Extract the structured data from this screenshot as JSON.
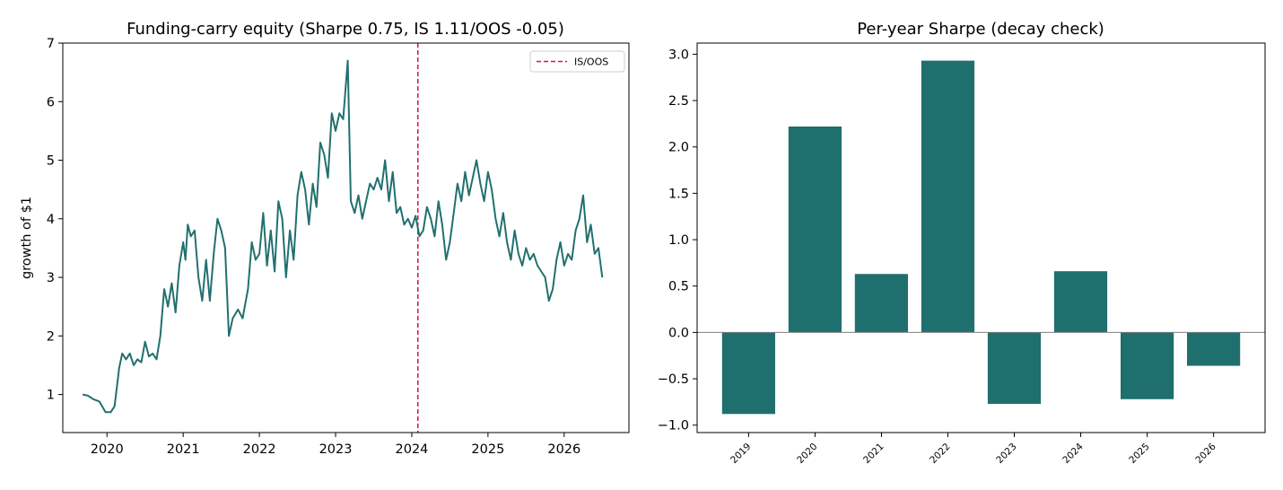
{
  "chart_data": [
    {
      "type": "line",
      "title": "Funding-carry equity (Sharpe 0.75, IS 1.11/OOS -0.05)",
      "xlabel": "",
      "ylabel": "growth of $1",
      "xlim": [
        2019.42,
        2026.85
      ],
      "ylim": [
        0.35,
        7.0
      ],
      "x_ticks": [
        "2020",
        "2021",
        "2022",
        "2023",
        "2024",
        "2025",
        "2026"
      ],
      "y_ticks": [
        "1",
        "2",
        "3",
        "4",
        "5",
        "6",
        "7"
      ],
      "color": "#21706f",
      "split": {
        "x": 2024.08,
        "label": "IS/OOS",
        "color": "#dc143c"
      },
      "legend": {
        "placement": "upper right",
        "entries": [
          "IS/OOS"
        ]
      },
      "series": [
        {
          "x": [
            2019.68,
            2019.75,
            2019.82,
            2019.9,
            2019.98,
            2020.05,
            2020.1,
            2020.16,
            2020.2,
            2020.25,
            2020.3,
            2020.35,
            2020.4,
            2020.45,
            2020.5,
            2020.55,
            2020.6,
            2020.65,
            2020.7,
            2020.75,
            2020.8,
            2020.85,
            2020.9,
            2020.95,
            2021.0,
            2021.03,
            2021.06,
            2021.1,
            2021.15,
            2021.2,
            2021.25,
            2021.3,
            2021.35,
            2021.4,
            2021.45,
            2021.5,
            2021.55,
            2021.6,
            2021.65,
            2021.72,
            2021.78,
            2021.85,
            2021.9,
            2021.95,
            2022.0,
            2022.05,
            2022.1,
            2022.15,
            2022.2,
            2022.25,
            2022.3,
            2022.35,
            2022.4,
            2022.45,
            2022.5,
            2022.55,
            2022.6,
            2022.65,
            2022.7,
            2022.75,
            2022.8,
            2022.85,
            2022.9,
            2022.95,
            2023.0,
            2023.05,
            2023.1,
            2023.16,
            2023.2,
            2023.25,
            2023.3,
            2023.35,
            2023.4,
            2023.45,
            2023.5,
            2023.55,
            2023.6,
            2023.65,
            2023.7,
            2023.75,
            2023.8,
            2023.85,
            2023.9,
            2023.95,
            2024.0,
            2024.05,
            2024.1,
            2024.15,
            2024.2,
            2024.25,
            2024.3,
            2024.35,
            2024.4,
            2024.45,
            2024.5,
            2024.55,
            2024.6,
            2024.65,
            2024.7,
            2024.75,
            2024.8,
            2024.85,
            2024.9,
            2024.95,
            2025.0,
            2025.05,
            2025.1,
            2025.15,
            2025.2,
            2025.25,
            2025.3,
            2025.35,
            2025.4,
            2025.45,
            2025.5,
            2025.55,
            2025.6,
            2025.65,
            2025.7,
            2025.75,
            2025.8,
            2025.85,
            2025.9,
            2025.95,
            2026.0,
            2026.05,
            2026.1,
            2026.15,
            2026.2,
            2026.25,
            2026.3,
            2026.35,
            2026.4,
            2026.45,
            2026.5
          ],
          "y": [
            1.0,
            0.98,
            0.92,
            0.88,
            0.7,
            0.7,
            0.8,
            1.45,
            1.7,
            1.6,
            1.7,
            1.5,
            1.6,
            1.55,
            1.9,
            1.65,
            1.7,
            1.6,
            2.0,
            2.8,
            2.5,
            2.9,
            2.4,
            3.2,
            3.6,
            3.3,
            3.9,
            3.7,
            3.8,
            3.0,
            2.6,
            3.3,
            2.6,
            3.4,
            4.0,
            3.8,
            3.5,
            2.0,
            2.3,
            2.45,
            2.3,
            2.8,
            3.6,
            3.3,
            3.4,
            4.1,
            3.2,
            3.8,
            3.1,
            4.3,
            4.0,
            3.0,
            3.8,
            3.3,
            4.4,
            4.8,
            4.5,
            3.9,
            4.6,
            4.2,
            5.3,
            5.1,
            4.7,
            5.8,
            5.5,
            5.8,
            5.7,
            6.7,
            4.3,
            4.1,
            4.4,
            4.0,
            4.3,
            4.6,
            4.5,
            4.7,
            4.5,
            5.0,
            4.3,
            4.8,
            4.1,
            4.2,
            3.9,
            4.0,
            3.85,
            4.05,
            3.7,
            3.8,
            4.2,
            4.0,
            3.7,
            4.3,
            3.9,
            3.3,
            3.6,
            4.1,
            4.6,
            4.3,
            4.8,
            4.4,
            4.7,
            5.0,
            4.6,
            4.3,
            4.8,
            4.5,
            4.0,
            3.7,
            4.1,
            3.6,
            3.3,
            3.8,
            3.4,
            3.2,
            3.5,
            3.3,
            3.4,
            3.2,
            3.1,
            3.0,
            2.6,
            2.8,
            3.3,
            3.6,
            3.2,
            3.4,
            3.3,
            3.8,
            4.0,
            4.4,
            3.6,
            3.9,
            3.4,
            3.5,
            3.0
          ]
        }
      ]
    },
    {
      "type": "bar",
      "title": "Per-year Sharpe (decay check)",
      "xlabel": "",
      "ylabel": "",
      "categories": [
        "2019",
        "2020",
        "2021",
        "2022",
        "2023",
        "2024",
        "2025",
        "2026"
      ],
      "values": [
        -0.88,
        2.22,
        0.63,
        2.93,
        -0.77,
        0.66,
        -0.72,
        -0.36
      ],
      "ylim": [
        -1.08,
        3.12
      ],
      "y_ticks": [
        "−1.0",
        "−0.5",
        "0.0",
        "0.5",
        "1.0",
        "1.5",
        "2.0",
        "2.5",
        "3.0"
      ],
      "color": "#1f6f6e",
      "zero_line_color": "#808080"
    }
  ]
}
